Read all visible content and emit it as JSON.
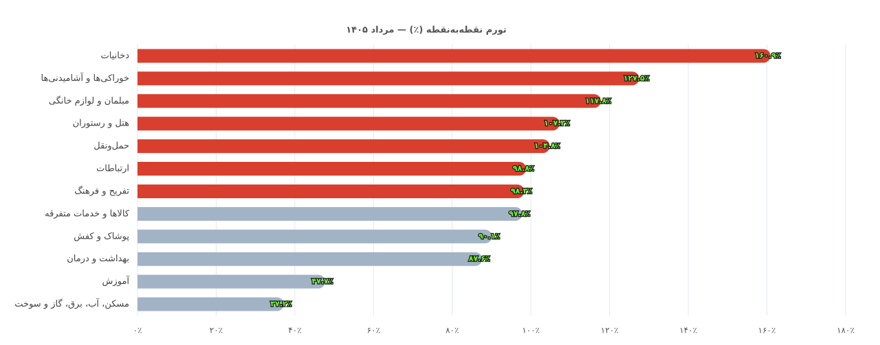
{
  "chart_data": {
    "type": "hbar",
    "title": "تورم نقطه‌به‌نقطه (٪) — مرداد ۱۴۰۵",
    "categories": [
      "دخانیات",
      "خوراکی‌ها و آشامیدنی‌ها",
      "مبلمان و لوازم خانگی",
      "هتل و رستوران",
      "حمل‌ونقل",
      "ارتباطات",
      "تفریح و فرهنگ",
      "کالاها و خدمات متفرقه",
      "پوشاک و کفش",
      "بهداشت و درمان",
      "آموزش",
      "مسکن، آب، برق، گاز و سوخت"
    ],
    "values": [
      160.9,
      127.5,
      117.8,
      107.3,
      104.8,
      98.8,
      98.3,
      97.8,
      90.1,
      87.6,
      47.7,
      37.2
    ],
    "value_labels": [
      "۱۶۰.۹٪",
      "۱۲۷.۵٪",
      "۱۱۷.۸٪",
      "۱۰۷.۳٪",
      "۱۰۴.۸٪",
      "۹۸.۸٪",
      "۹۸.۳٪",
      "۹۷.۸٪",
      "۹۰.۱٪",
      "۸۷.۶٪",
      "۴۷.۷٪",
      "۳۷.۲٪"
    ],
    "colors": [
      "#d93f2e",
      "#d93f2e",
      "#d93f2e",
      "#d93f2e",
      "#d93f2e",
      "#d93f2e",
      "#d93f2e",
      "#a3b3c6",
      "#a3b3c6",
      "#a3b3c6",
      "#a3b3c6",
      "#a3b3c6"
    ],
    "xlim": [
      0,
      180
    ],
    "xticks": [
      {
        "value": 0,
        "label": "۰٪"
      },
      {
        "value": 20,
        "label": "۲۰٪"
      },
      {
        "value": 40,
        "label": "۴۰٪"
      },
      {
        "value": 60,
        "label": "۶۰٪"
      },
      {
        "value": 80,
        "label": "۸۰٪"
      },
      {
        "value": 100,
        "label": "۱۰۰٪"
      },
      {
        "value": 120,
        "label": "۱۲۰٪"
      },
      {
        "value": 140,
        "label": "۱۴۰٪"
      },
      {
        "value": 160,
        "label": "۱۶۰٪"
      },
      {
        "value": 180,
        "label": "۱۸۰٪"
      }
    ],
    "grid": true
  }
}
